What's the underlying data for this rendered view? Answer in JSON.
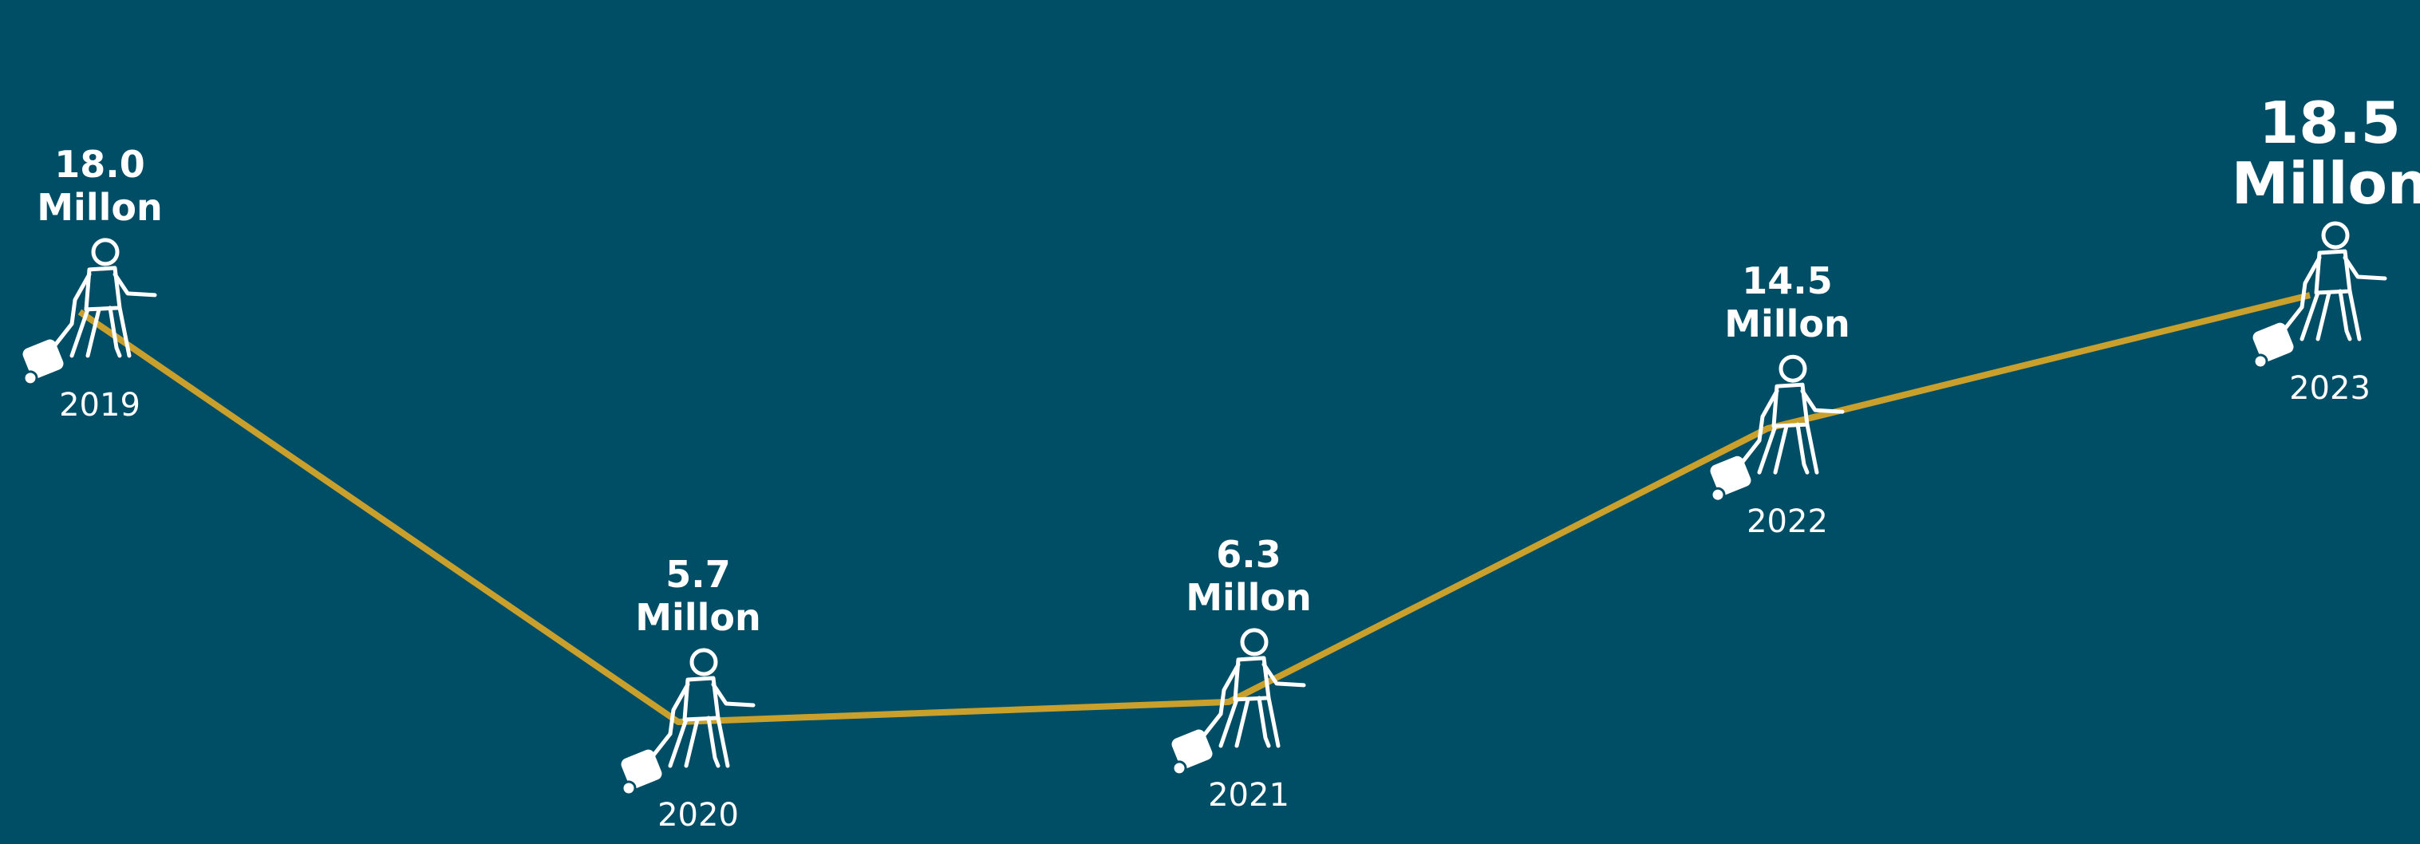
{
  "colors": {
    "background": "#004e66",
    "line": "#c9a02c",
    "text": "#ffffff",
    "icon": "#ffffff"
  },
  "icon": "traveler-with-luggage-icon",
  "chart_data": {
    "type": "line",
    "title": "",
    "xlabel": "",
    "ylabel": "",
    "categories": [
      "2019",
      "2020",
      "2021",
      "2022",
      "2023"
    ],
    "series": [
      {
        "values": [
          18.0,
          5.7,
          6.3,
          14.5,
          18.5
        ],
        "value_labels": [
          "18.0",
          "5.7",
          "6.3",
          "14.5",
          "18.5"
        ],
        "unit": "Millon"
      }
    ],
    "grid": false,
    "legend": "none"
  }
}
